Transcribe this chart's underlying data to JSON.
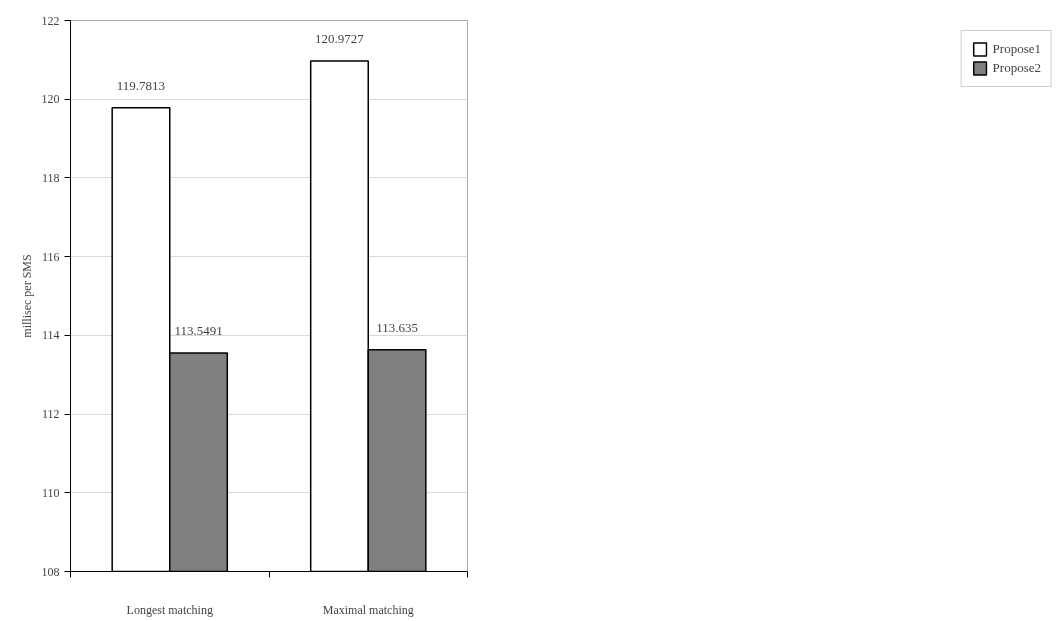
{
  "chart_data": {
    "type": "bar",
    "ylabel": "millisec per SMS",
    "categories": [
      "Longest matching",
      "Maximal matching"
    ],
    "series": [
      {
        "name": "Propose1",
        "color": "#ffffff",
        "values": [
          119.7813,
          120.9727
        ]
      },
      {
        "name": "Propose2",
        "color": "#808080",
        "values": [
          113.5491,
          113.635
        ]
      }
    ],
    "ylim": [
      108,
      122
    ],
    "yticks": [
      108,
      110,
      112,
      114,
      116,
      118,
      120,
      122
    ],
    "grid": "y",
    "legend": "right",
    "data_labels": true
  }
}
